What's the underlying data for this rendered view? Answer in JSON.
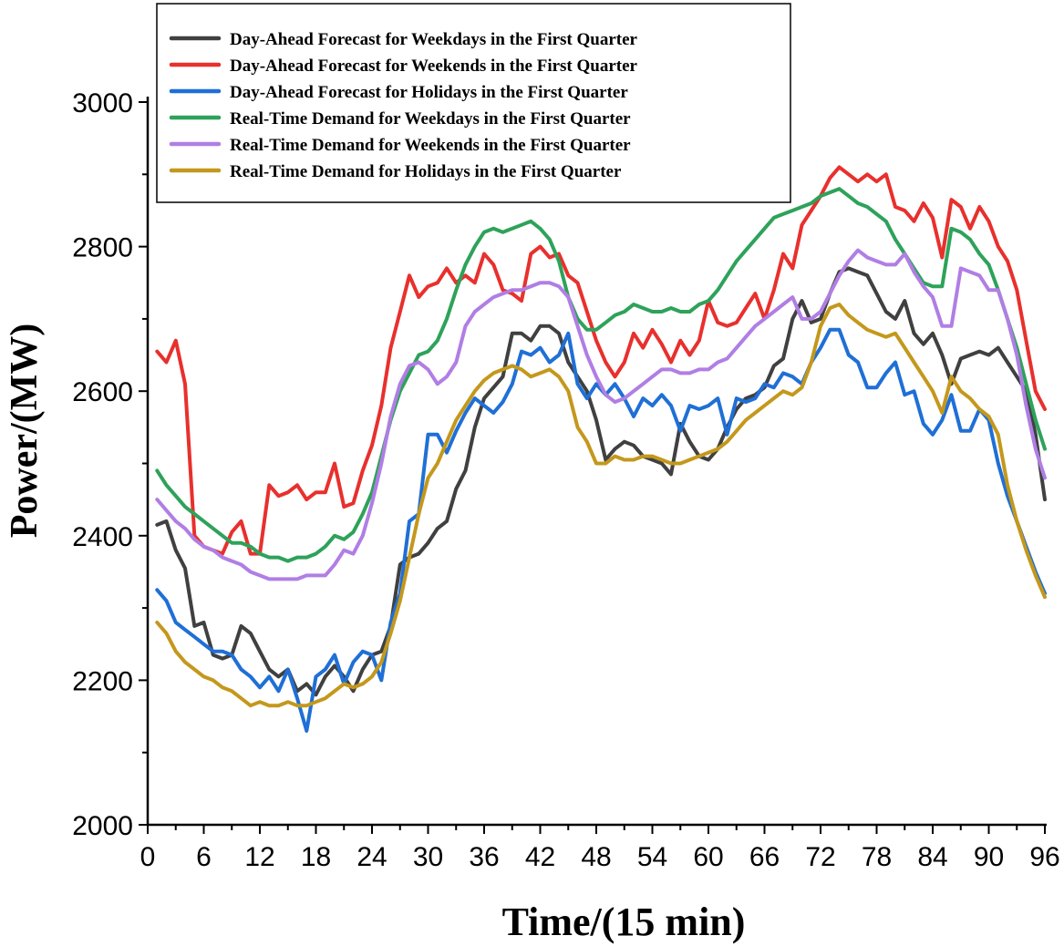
{
  "chart_data": {
    "type": "line",
    "title": "",
    "xlabel": "Time/(15 min)",
    "ylabel": "Power/(MW)",
    "xlim": [
      0,
      96
    ],
    "ylim": [
      2000,
      3000
    ],
    "xticks": [
      0,
      6,
      12,
      18,
      24,
      30,
      36,
      42,
      48,
      54,
      60,
      66,
      72,
      78,
      84,
      90,
      96
    ],
    "yticks": [
      2000,
      2200,
      2400,
      2600,
      2800,
      3000
    ],
    "grid": false,
    "legend_position": "top-left",
    "x": [
      1,
      2,
      3,
      4,
      5,
      6,
      7,
      8,
      9,
      10,
      11,
      12,
      13,
      14,
      15,
      16,
      17,
      18,
      19,
      20,
      21,
      22,
      23,
      24,
      25,
      26,
      27,
      28,
      29,
      30,
      31,
      32,
      33,
      34,
      35,
      36,
      37,
      38,
      39,
      40,
      41,
      42,
      43,
      44,
      45,
      46,
      47,
      48,
      49,
      50,
      51,
      52,
      53,
      54,
      55,
      56,
      57,
      58,
      59,
      60,
      61,
      62,
      63,
      64,
      65,
      66,
      67,
      68,
      69,
      70,
      71,
      72,
      73,
      74,
      75,
      76,
      77,
      78,
      79,
      80,
      81,
      82,
      83,
      84,
      85,
      86,
      87,
      88,
      89,
      90,
      91,
      92,
      93,
      94,
      95,
      96
    ],
    "series": [
      {
        "name": "Day-Ahead Forecast for Weekdays in the First Quarter",
        "color": "#404040",
        "values": [
          2415,
          2420,
          2380,
          2355,
          2275,
          2280,
          2235,
          2230,
          2235,
          2275,
          2265,
          2240,
          2215,
          2205,
          2215,
          2185,
          2195,
          2180,
          2205,
          2220,
          2205,
          2185,
          2215,
          2235,
          2240,
          2275,
          2360,
          2370,
          2375,
          2390,
          2410,
          2420,
          2465,
          2490,
          2550,
          2590,
          2605,
          2620,
          2680,
          2680,
          2670,
          2690,
          2690,
          2680,
          2640,
          2620,
          2600,
          2560,
          2505,
          2520,
          2530,
          2525,
          2510,
          2505,
          2500,
          2485,
          2555,
          2530,
          2510,
          2505,
          2520,
          2550,
          2575,
          2590,
          2595,
          2605,
          2635,
          2645,
          2700,
          2725,
          2695,
          2700,
          2735,
          2765,
          2770,
          2765,
          2760,
          2735,
          2710,
          2700,
          2725,
          2680,
          2665,
          2680,
          2650,
          2610,
          2645,
          2650,
          2655,
          2650,
          2660,
          2640,
          2620,
          2600,
          2540,
          2450
        ]
      },
      {
        "name": "Day-Ahead Forecast for Weekends in the First Quarter",
        "color": "#e8302d",
        "values": [
          2655,
          2640,
          2670,
          2610,
          2400,
          2385,
          2380,
          2375,
          2405,
          2420,
          2375,
          2375,
          2470,
          2455,
          2460,
          2470,
          2450,
          2460,
          2460,
          2500,
          2440,
          2445,
          2490,
          2525,
          2580,
          2660,
          2710,
          2760,
          2730,
          2745,
          2750,
          2770,
          2750,
          2760,
          2750,
          2790,
          2775,
          2740,
          2735,
          2725,
          2790,
          2800,
          2785,
          2790,
          2760,
          2750,
          2710,
          2670,
          2640,
          2620,
          2640,
          2680,
          2660,
          2685,
          2665,
          2640,
          2670,
          2650,
          2670,
          2725,
          2695,
          2690,
          2695,
          2715,
          2735,
          2700,
          2740,
          2790,
          2770,
          2830,
          2850,
          2870,
          2895,
          2910,
          2900,
          2890,
          2900,
          2890,
          2900,
          2855,
          2850,
          2835,
          2860,
          2840,
          2785,
          2865,
          2855,
          2825,
          2855,
          2835,
          2800,
          2780,
          2740,
          2670,
          2600,
          2575
        ]
      },
      {
        "name": "Day-Ahead Forecast for Holidays in the First Quarter",
        "color": "#1f6fd6",
        "values": [
          2325,
          2310,
          2280,
          2270,
          2260,
          2250,
          2240,
          2240,
          2235,
          2215,
          2205,
          2190,
          2205,
          2185,
          2215,
          2175,
          2130,
          2205,
          2215,
          2235,
          2195,
          2225,
          2240,
          2235,
          2200,
          2280,
          2320,
          2420,
          2430,
          2540,
          2540,
          2515,
          2545,
          2570,
          2590,
          2580,
          2570,
          2585,
          2610,
          2655,
          2650,
          2660,
          2640,
          2650,
          2680,
          2610,
          2590,
          2610,
          2595,
          2610,
          2590,
          2565,
          2590,
          2580,
          2595,
          2580,
          2545,
          2580,
          2575,
          2580,
          2590,
          2540,
          2590,
          2585,
          2590,
          2610,
          2605,
          2625,
          2620,
          2610,
          2640,
          2660,
          2685,
          2685,
          2650,
          2640,
          2605,
          2605,
          2625,
          2640,
          2595,
          2600,
          2555,
          2540,
          2560,
          2595,
          2545,
          2545,
          2575,
          2560,
          2500,
          2455,
          2420,
          2385,
          2350,
          2320
        ]
      },
      {
        "name": "Real-Time Demand for Weekdays in the First Quarter",
        "color": "#2ea25a",
        "values": [
          2490,
          2470,
          2455,
          2440,
          2430,
          2420,
          2410,
          2400,
          2390,
          2390,
          2385,
          2375,
          2370,
          2370,
          2365,
          2370,
          2370,
          2375,
          2385,
          2400,
          2395,
          2405,
          2430,
          2460,
          2510,
          2560,
          2600,
          2625,
          2650,
          2655,
          2670,
          2700,
          2740,
          2775,
          2800,
          2820,
          2825,
          2820,
          2825,
          2830,
          2835,
          2825,
          2810,
          2780,
          2730,
          2700,
          2685,
          2685,
          2695,
          2705,
          2710,
          2720,
          2715,
          2710,
          2710,
          2715,
          2710,
          2710,
          2720,
          2725,
          2740,
          2760,
          2780,
          2795,
          2810,
          2825,
          2840,
          2845,
          2850,
          2855,
          2860,
          2870,
          2875,
          2880,
          2870,
          2860,
          2855,
          2845,
          2835,
          2810,
          2790,
          2770,
          2750,
          2745,
          2745,
          2825,
          2820,
          2810,
          2790,
          2775,
          2740,
          2700,
          2660,
          2610,
          2560,
          2520
        ]
      },
      {
        "name": "Real-Time Demand for Weekends in the First Quarter",
        "color": "#b07ee4",
        "values": [
          2450,
          2435,
          2420,
          2410,
          2395,
          2385,
          2380,
          2370,
          2365,
          2360,
          2350,
          2345,
          2340,
          2340,
          2340,
          2340,
          2345,
          2345,
          2345,
          2360,
          2380,
          2375,
          2400,
          2445,
          2500,
          2565,
          2610,
          2635,
          2640,
          2630,
          2610,
          2620,
          2640,
          2690,
          2710,
          2720,
          2730,
          2735,
          2740,
          2740,
          2745,
          2750,
          2750,
          2745,
          2730,
          2690,
          2650,
          2620,
          2595,
          2585,
          2590,
          2600,
          2610,
          2620,
          2630,
          2630,
          2625,
          2625,
          2630,
          2630,
          2640,
          2645,
          2660,
          2675,
          2690,
          2700,
          2710,
          2720,
          2730,
          2700,
          2700,
          2710,
          2735,
          2760,
          2780,
          2795,
          2785,
          2780,
          2775,
          2775,
          2790,
          2765,
          2745,
          2730,
          2690,
          2690,
          2770,
          2765,
          2760,
          2740,
          2740,
          2700,
          2650,
          2580,
          2520,
          2480
        ]
      },
      {
        "name": "Real-Time Demand for Holidays in the First Quarter",
        "color": "#c4981c",
        "values": [
          2280,
          2265,
          2240,
          2225,
          2215,
          2205,
          2200,
          2190,
          2185,
          2175,
          2165,
          2170,
          2165,
          2165,
          2170,
          2165,
          2165,
          2170,
          2175,
          2185,
          2195,
          2190,
          2195,
          2205,
          2225,
          2265,
          2310,
          2370,
          2430,
          2480,
          2500,
          2530,
          2560,
          2580,
          2600,
          2615,
          2625,
          2630,
          2635,
          2630,
          2620,
          2625,
          2630,
          2620,
          2600,
          2550,
          2530,
          2500,
          2500,
          2510,
          2505,
          2505,
          2510,
          2510,
          2505,
          2500,
          2500,
          2505,
          2510,
          2515,
          2520,
          2530,
          2545,
          2560,
          2570,
          2580,
          2590,
          2600,
          2595,
          2605,
          2640,
          2690,
          2715,
          2720,
          2705,
          2695,
          2685,
          2680,
          2675,
          2680,
          2660,
          2640,
          2620,
          2600,
          2570,
          2620,
          2600,
          2590,
          2575,
          2565,
          2540,
          2470,
          2420,
          2380,
          2345,
          2315
        ]
      }
    ]
  }
}
